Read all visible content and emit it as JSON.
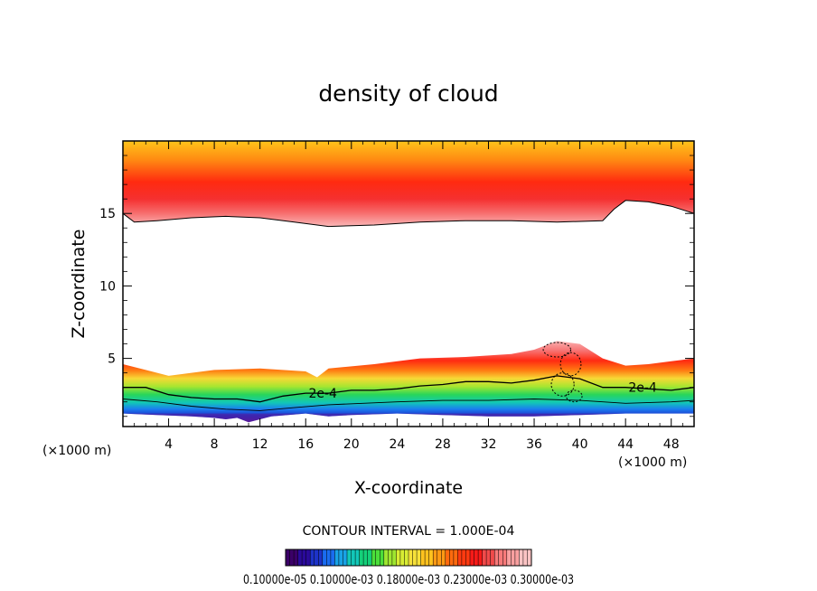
{
  "chart_data": {
    "type": "contour",
    "title": "density of cloud",
    "xlabel": "X-coordinate",
    "ylabel": "Z-coordinate",
    "x_unit_left": "(×1000 m)",
    "x_unit_right": "(×1000 m)",
    "xlim": [
      0,
      50
    ],
    "ylim": [
      0.3,
      20
    ],
    "x_ticks": [
      4,
      8,
      12,
      16,
      20,
      24,
      28,
      32,
      36,
      40,
      44,
      48
    ],
    "y_ticks": [
      5,
      10,
      15
    ],
    "contour_interval_text": "CONTOUR INTERVAL = 1.000E-04",
    "contour_labels": [
      {
        "text": "2e-4",
        "x": 17.5,
        "z": 2.6
      },
      {
        "text": "2e-4",
        "x": 45.5,
        "z": 3.0
      }
    ],
    "upper_layer_base": [
      [
        0,
        15.0
      ],
      [
        1,
        14.4
      ],
      [
        3,
        14.5
      ],
      [
        6,
        14.7
      ],
      [
        9,
        14.8
      ],
      [
        12,
        14.7
      ],
      [
        15,
        14.4
      ],
      [
        18,
        14.1
      ],
      [
        22,
        14.2
      ],
      [
        26,
        14.4
      ],
      [
        30,
        14.5
      ],
      [
        34,
        14.5
      ],
      [
        38,
        14.4
      ],
      [
        42,
        14.5
      ],
      [
        43,
        15.3
      ],
      [
        44,
        15.9
      ],
      [
        46,
        15.8
      ],
      [
        48,
        15.5
      ],
      [
        50,
        15.0
      ]
    ],
    "upper_layer_top": 20,
    "lower_layer_top": [
      [
        0,
        4.6
      ],
      [
        2,
        4.2
      ],
      [
        4,
        3.8
      ],
      [
        6,
        4.0
      ],
      [
        8,
        4.2
      ],
      [
        12,
        4.3
      ],
      [
        16,
        4.1
      ],
      [
        17,
        3.7
      ],
      [
        18,
        4.3
      ],
      [
        22,
        4.6
      ],
      [
        26,
        5.0
      ],
      [
        30,
        5.1
      ],
      [
        34,
        5.3
      ],
      [
        36,
        5.6
      ],
      [
        38,
        6.2
      ],
      [
        40,
        6.0
      ],
      [
        42,
        5.0
      ],
      [
        44,
        4.5
      ],
      [
        46,
        4.6
      ],
      [
        48,
        4.8
      ],
      [
        50,
        5.0
      ]
    ],
    "contour_2e4": [
      [
        0,
        3.0
      ],
      [
        2,
        3.0
      ],
      [
        4,
        2.5
      ],
      [
        6,
        2.3
      ],
      [
        8,
        2.2
      ],
      [
        10,
        2.2
      ],
      [
        12,
        2.0
      ],
      [
        14,
        2.4
      ],
      [
        16,
        2.6
      ],
      [
        18,
        2.6
      ],
      [
        20,
        2.8
      ],
      [
        22,
        2.8
      ],
      [
        24,
        2.9
      ],
      [
        26,
        3.1
      ],
      [
        28,
        3.2
      ],
      [
        30,
        3.4
      ],
      [
        32,
        3.4
      ],
      [
        34,
        3.3
      ],
      [
        36,
        3.5
      ],
      [
        38,
        3.8
      ],
      [
        40,
        3.6
      ],
      [
        42,
        3.0
      ],
      [
        44,
        3.0
      ],
      [
        46,
        2.9
      ],
      [
        48,
        2.8
      ],
      [
        50,
        3.0
      ]
    ],
    "contour_1e4": [
      [
        0,
        2.2
      ],
      [
        3,
        2.0
      ],
      [
        6,
        1.7
      ],
      [
        9,
        1.5
      ],
      [
        12,
        1.4
      ],
      [
        15,
        1.6
      ],
      [
        18,
        1.8
      ],
      [
        21,
        1.9
      ],
      [
        24,
        2.0
      ],
      [
        28,
        2.1
      ],
      [
        32,
        2.1
      ],
      [
        36,
        2.2
      ],
      [
        40,
        2.1
      ],
      [
        44,
        1.9
      ],
      [
        48,
        2.0
      ],
      [
        50,
        2.1
      ]
    ],
    "cloud_base": [
      [
        0,
        1.2
      ],
      [
        3,
        1.1
      ],
      [
        6,
        1.0
      ],
      [
        8,
        0.9
      ],
      [
        9,
        0.8
      ],
      [
        10,
        0.9
      ],
      [
        11,
        0.6
      ],
      [
        12,
        0.8
      ],
      [
        13,
        1.0
      ],
      [
        16,
        1.2
      ],
      [
        18,
        1.0
      ],
      [
        20,
        1.1
      ],
      [
        24,
        1.2
      ],
      [
        28,
        1.1
      ],
      [
        32,
        1.0
      ],
      [
        36,
        1.0
      ],
      [
        40,
        1.1
      ],
      [
        44,
        1.2
      ],
      [
        48,
        1.2
      ],
      [
        50,
        1.2
      ]
    ],
    "colorbar": {
      "label_text": "0.10000e-05 0.10000e-03 0.18000e-03 0.23000e-03 0.30000e-03",
      "colors": [
        "#3b0068",
        "#2a0a9a",
        "#1d33c8",
        "#1a6cf0",
        "#19a3e6",
        "#12c7b8",
        "#14d07a",
        "#4bde3a",
        "#9ee630",
        "#d8ec33",
        "#f7e13a",
        "#ffc21e",
        "#ff9a14",
        "#ff6a0e",
        "#ff3a10",
        "#f71a18",
        "#f14a4a",
        "#f77a7a",
        "#f9a0a0",
        "#fbc4c4"
      ]
    },
    "colors": {
      "upper_high": "#ffc41a",
      "upper_mid": "#ff1c10",
      "upper_low": "#f9b0b0",
      "lower_pink": "#f98888",
      "lower_red": "#ff2a12",
      "lower_orange": "#ff9a14",
      "lower_yellow": "#d8ec33",
      "lower_green": "#14d07a",
      "lower_cyan": "#19a3e6",
      "lower_blue": "#1d33c8",
      "lower_violet": "#5a1a9a"
    }
  }
}
